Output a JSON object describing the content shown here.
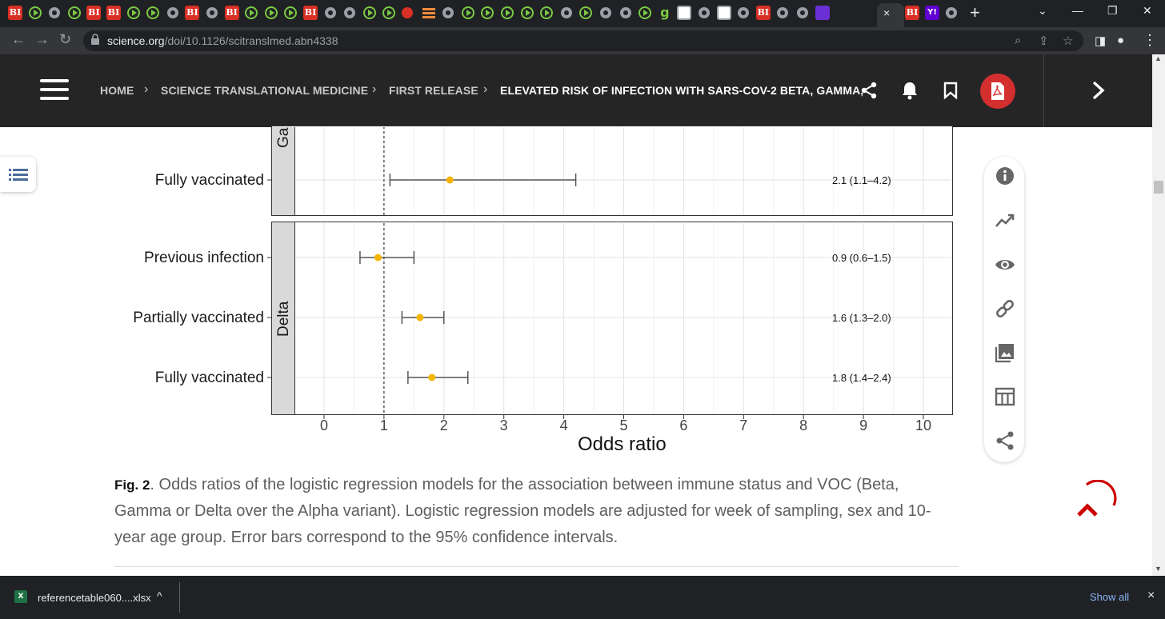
{
  "browser": {
    "tab_glyphs": {
      "bi": "BI",
      "g": "g",
      "yahoo": "Y!"
    },
    "active_tab_close": "×",
    "new_tab": "+",
    "url_domain": "science.org",
    "url_path": "/doi/10.1126/scitranslmed.abn4338",
    "menu": "⋮"
  },
  "site": {
    "breadcrumbs": [
      "HOME",
      "SCIENCE TRANSLATIONAL MEDICINE",
      "FIRST RELEASE",
      "ELEVATED RISK OF INFECTION WITH SARS-COV-2 BETA, GAMMA,"
    ],
    "next_arrow": "›"
  },
  "figure": {
    "panel_gamma_label": "Ga",
    "panel_delta_label": "Delta",
    "rows": [
      {
        "label": "Fully vaccinated",
        "ci": "2.1 (1.1–4.2)"
      },
      {
        "label": "Previous infection",
        "ci": "0.9 (0.6–1.5)"
      },
      {
        "label": "Partially vaccinated",
        "ci": "1.6 (1.3–2.0)"
      },
      {
        "label": "Fully vaccinated",
        "ci": "1.8 (1.4–2.4)"
      }
    ],
    "x_axis_title": "Odds ratio",
    "x_ticks": [
      "0",
      "1",
      "2",
      "3",
      "4",
      "5",
      "6",
      "7",
      "8",
      "9",
      "10"
    ]
  },
  "chart_data": {
    "type": "scatter",
    "xlabel": "Odds ratio",
    "xlim": [
      -0.5,
      10.5
    ],
    "reference_line_x": 1,
    "point_color": "#f5b400",
    "points": [
      {
        "panel": "Ga",
        "label": "Fully vaccinated",
        "estimate": 2.1,
        "lower": 1.1,
        "upper": 4.2
      },
      {
        "panel": "Delta",
        "label": "Previous infection",
        "estimate": 0.9,
        "lower": 0.6,
        "upper": 1.5
      },
      {
        "panel": "Delta",
        "label": "Partially vaccinated",
        "estimate": 1.6,
        "lower": 1.3,
        "upper": 2.0
      },
      {
        "panel": "Delta",
        "label": "Fully vaccinated",
        "estimate": 1.8,
        "lower": 1.4,
        "upper": 2.4
      }
    ]
  },
  "caption": {
    "label": "Fig. 2",
    "text": ". Odds ratios of the logistic regression models for the association between immune status and VOC (Beta, Gamma or Delta over the Alpha variant). Logistic regression models are adjusted for week of sampling, sex and 10-year age group. Error bars correspond to the 95% confidence intervals."
  },
  "tools": [
    "info-icon",
    "trending-icon",
    "eye-icon",
    "link-icon",
    "image-icon",
    "table-icon",
    "share-icon"
  ],
  "downloads": {
    "file_name": "referencetable060....xlsx",
    "file_icon": "X",
    "chevron": "^",
    "show_all": "Show all",
    "close": "×"
  }
}
